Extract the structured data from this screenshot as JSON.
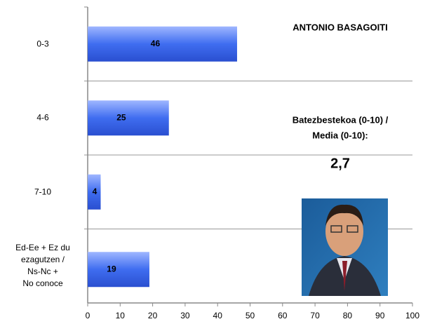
{
  "chart_data": {
    "type": "bar",
    "orientation": "horizontal",
    "title": "ANTONIO BASAGOITI",
    "annotations": [
      "Batezbestekoa (0-10) /",
      "Media (0-10):",
      "2,7"
    ],
    "categories": [
      "0-3",
      "4-6",
      "7-10",
      "Ed-Ee + Ez du\nezagutzen /\nNs-Nc +\nNo conoce"
    ],
    "values": [
      46,
      25,
      4,
      19
    ],
    "color": "#3f6df0",
    "xlim": [
      0,
      100
    ],
    "xticks": [
      0,
      10,
      20,
      30,
      40,
      50,
      60,
      70,
      80,
      90,
      100
    ]
  }
}
